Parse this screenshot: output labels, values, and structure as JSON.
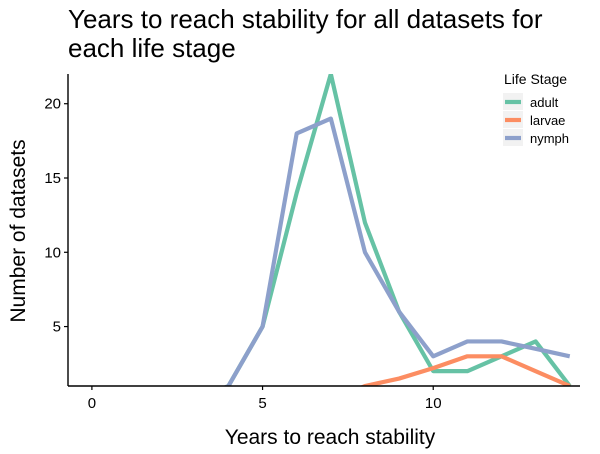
{
  "chart_data": {
    "type": "line",
    "title_lines": [
      "Years to reach stability for all datasets for",
      "each life stage"
    ],
    "xlabel": "Years to reach stability",
    "ylabel": "Number of datasets",
    "xlim": [
      -0.7,
      14.3
    ],
    "ylim": [
      1,
      22
    ],
    "x_ticks": [
      0,
      5,
      10
    ],
    "y_ticks": [
      5,
      10,
      15,
      20
    ],
    "grid": false,
    "legend": {
      "title": "Life Stage",
      "position": "top-right"
    },
    "series": [
      {
        "name": "adult",
        "color": "#66c2a5",
        "x": [
          0,
          1,
          2,
          3,
          4,
          5,
          6,
          7,
          8,
          9,
          10,
          11,
          12,
          13,
          14
        ],
        "y": [
          0,
          0,
          0,
          0,
          1,
          5,
          14,
          22,
          12,
          6,
          2,
          2,
          3,
          4,
          1
        ]
      },
      {
        "name": "larvae",
        "color": "#fc8d62",
        "x": [
          0,
          1,
          2,
          3,
          4,
          5,
          6,
          7,
          8,
          9,
          10,
          11,
          12,
          13,
          14
        ],
        "y": [
          0,
          0,
          0,
          0,
          0,
          0,
          0,
          0,
          1,
          1.5,
          2.2,
          3,
          3,
          2,
          1
        ]
      },
      {
        "name": "nymph",
        "color": "#8da0cb",
        "x": [
          0,
          1,
          2,
          3,
          4,
          5,
          6,
          7,
          8,
          9,
          10,
          11,
          12,
          13,
          14
        ],
        "y": [
          0,
          0,
          0,
          0,
          1,
          5,
          18,
          19,
          10,
          6,
          3,
          4,
          4,
          3.5,
          3
        ]
      }
    ]
  }
}
